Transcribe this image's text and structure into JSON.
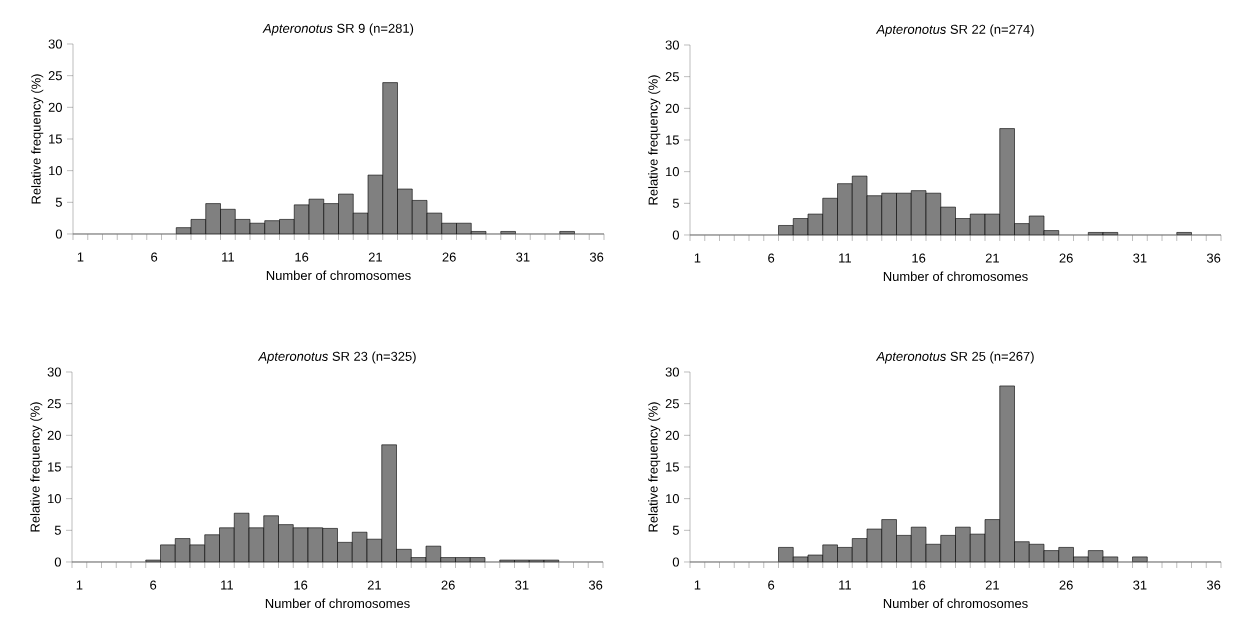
{
  "chart_data": [
    {
      "type": "bar",
      "title": "*Apteronotus* SR 9 (n=281)",
      "xlabel": "Number of chromosomes",
      "ylabel": "Relative frequency (%)",
      "categories": [
        "1",
        null,
        null,
        null,
        null,
        "6",
        null,
        null,
        null,
        null,
        "11",
        null,
        null,
        null,
        null,
        "16",
        null,
        null,
        null,
        null,
        "21",
        null,
        null,
        null,
        null,
        "26",
        null,
        null,
        null,
        null,
        "31",
        null,
        null,
        null,
        null,
        "36"
      ],
      "values": [
        0,
        0,
        0,
        0,
        0,
        0,
        0,
        1,
        2.3,
        4.8,
        3.9,
        2.3,
        1.7,
        2.1,
        2.3,
        4.6,
        5.5,
        4.8,
        6.3,
        3.3,
        9.3,
        23.9,
        7.1,
        5.3,
        3.3,
        1.7,
        1.7,
        0.4,
        0,
        0.4,
        0,
        0,
        0,
        0.4,
        0,
        0
      ],
      "color": "#808080",
      "ylim": [
        0,
        30
      ],
      "yticks": [
        0,
        5,
        10,
        15,
        20,
        25,
        30
      ]
    },
    {
      "type": "bar",
      "title": "*Apteronotus* SR 22 (n=274)",
      "xlabel": "Number of chromosomes",
      "ylabel": "Relative frequency (%)",
      "categories": [
        "1",
        null,
        null,
        null,
        null,
        "6",
        null,
        null,
        null,
        null,
        "11",
        null,
        null,
        null,
        null,
        "16",
        null,
        null,
        null,
        null,
        "21",
        null,
        null,
        null,
        null,
        "26",
        null,
        null,
        null,
        null,
        "31",
        null,
        null,
        null,
        null,
        "36"
      ],
      "values": [
        0,
        0,
        0,
        0,
        0,
        0,
        1.5,
        2.6,
        3.3,
        5.8,
        8.1,
        9.3,
        6.2,
        6.6,
        6.6,
        7.0,
        6.6,
        4.4,
        2.6,
        3.3,
        3.3,
        16.8,
        1.8,
        3.0,
        0.7,
        0,
        0,
        0.4,
        0.4,
        0,
        0,
        0,
        0,
        0.4,
        0,
        0
      ],
      "color": "#808080",
      "ylim": [
        0,
        30
      ],
      "yticks": [
        0,
        5,
        10,
        15,
        20,
        25,
        30
      ]
    },
    {
      "type": "bar",
      "title": "*Apteronotus* SR 23 (n=325)",
      "xlabel": "Number of chromosomes",
      "ylabel": "Relative frequency (%)",
      "categories": [
        "1",
        null,
        null,
        null,
        null,
        "6",
        null,
        null,
        null,
        null,
        "11",
        null,
        null,
        null,
        null,
        "16",
        null,
        null,
        null,
        null,
        "21",
        null,
        null,
        null,
        null,
        "26",
        null,
        null,
        null,
        null,
        "31",
        null,
        null,
        null,
        null,
        "36"
      ],
      "values": [
        0,
        0,
        0,
        0,
        0,
        0.3,
        2.7,
        3.7,
        2.7,
        4.3,
        5.4,
        7.7,
        5.4,
        7.3,
        5.9,
        5.4,
        5.4,
        5.3,
        3.1,
        4.7,
        3.6,
        18.5,
        2.0,
        0.7,
        2.5,
        0.7,
        0.7,
        0.7,
        0,
        0.3,
        0.3,
        0.3,
        0.3,
        0,
        0,
        0
      ],
      "color": "#808080",
      "ylim": [
        0,
        30
      ],
      "yticks": [
        0,
        5,
        10,
        15,
        20,
        25,
        30
      ]
    },
    {
      "type": "bar",
      "title": "*Apteronotus* SR 25 (n=267)",
      "xlabel": "Number of chromosomes",
      "ylabel": "Relative frequency (%)",
      "categories": [
        "1",
        null,
        null,
        null,
        null,
        "6",
        null,
        null,
        null,
        null,
        "11",
        null,
        null,
        null,
        null,
        "16",
        null,
        null,
        null,
        null,
        "21",
        null,
        null,
        null,
        null,
        "26",
        null,
        null,
        null,
        null,
        "31",
        null,
        null,
        null,
        null,
        "36"
      ],
      "values": [
        0,
        0,
        0,
        0,
        0,
        0,
        2.3,
        0.8,
        1.1,
        2.7,
        2.3,
        3.7,
        5.2,
        6.7,
        4.2,
        5.5,
        2.8,
        4.2,
        5.5,
        4.4,
        6.7,
        27.8,
        3.2,
        2.8,
        1.8,
        2.3,
        0.8,
        1.8,
        0.8,
        0,
        0.8,
        0,
        0,
        0,
        0,
        0
      ],
      "color": "#808080",
      "ylim": [
        0,
        30
      ],
      "yticks": [
        0,
        5,
        10,
        15,
        20,
        25,
        30
      ]
    }
  ]
}
